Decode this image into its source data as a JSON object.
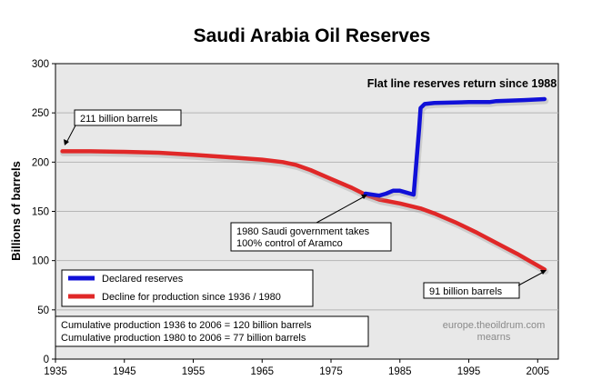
{
  "chart_data": {
    "type": "line",
    "title": "Saudi Arabia Oil Reserves",
    "xlabel": "",
    "ylabel": "Billions of barrels",
    "xlim": [
      1935,
      2008
    ],
    "ylim": [
      0,
      300
    ],
    "x_ticks": [
      "1935",
      "1945",
      "1955",
      "1965",
      "1975",
      "1985",
      "1995",
      "2005"
    ],
    "y_ticks": [
      "0",
      "50",
      "100",
      "150",
      "200",
      "250",
      "300"
    ],
    "grid": "horizontal",
    "legend_position": "bottom-left",
    "series": [
      {
        "name": "Declared reserves",
        "color": "#1010d8",
        "points": [
          [
            1980,
            168
          ],
          [
            1981,
            167
          ],
          [
            1982,
            166
          ],
          [
            1983,
            168
          ],
          [
            1984,
            171
          ],
          [
            1985,
            171
          ],
          [
            1986,
            169
          ],
          [
            1987,
            167
          ],
          [
            1987.4,
            200
          ],
          [
            1987.8,
            235
          ],
          [
            1988,
            255
          ],
          [
            1988.6,
            259
          ],
          [
            1990,
            260
          ],
          [
            1995,
            261
          ],
          [
            1998,
            261
          ],
          [
            1999,
            262
          ],
          [
            2003,
            263
          ],
          [
            2006,
            264
          ]
        ]
      },
      {
        "name": "Decline for production since 1936 / 1980",
        "color": "#e02828",
        "points": [
          [
            1936,
            211
          ],
          [
            1940,
            211
          ],
          [
            1945,
            210.5
          ],
          [
            1950,
            209.5
          ],
          [
            1955,
            207.5
          ],
          [
            1960,
            205
          ],
          [
            1965,
            202.5
          ],
          [
            1968,
            200
          ],
          [
            1970,
            197
          ],
          [
            1972,
            192
          ],
          [
            1975,
            183
          ],
          [
            1978,
            174
          ],
          [
            1980,
            167
          ],
          [
            1982,
            162
          ],
          [
            1985,
            158
          ],
          [
            1988,
            153
          ],
          [
            1990,
            148
          ],
          [
            1993,
            139
          ],
          [
            1996,
            129
          ],
          [
            1999,
            118
          ],
          [
            2002,
            107
          ],
          [
            2004,
            99
          ],
          [
            2006,
            91
          ]
        ]
      }
    ],
    "annotations": [
      {
        "text": "Flat line reserves return since 1988"
      },
      {
        "text": "211 billion barrels"
      },
      {
        "text": "91 billion barrels"
      },
      {
        "text": "1980 Saudi government takes"
      },
      {
        "text": "100% control of Aramco"
      }
    ],
    "notes": [
      "Cumulative production 1936 to 2006 = 120 billion barrels",
      "Cumulative production 1980 to 2006 = 77 billion barrels"
    ],
    "credit": [
      "europe.theoildrum.com",
      "mearns"
    ]
  }
}
